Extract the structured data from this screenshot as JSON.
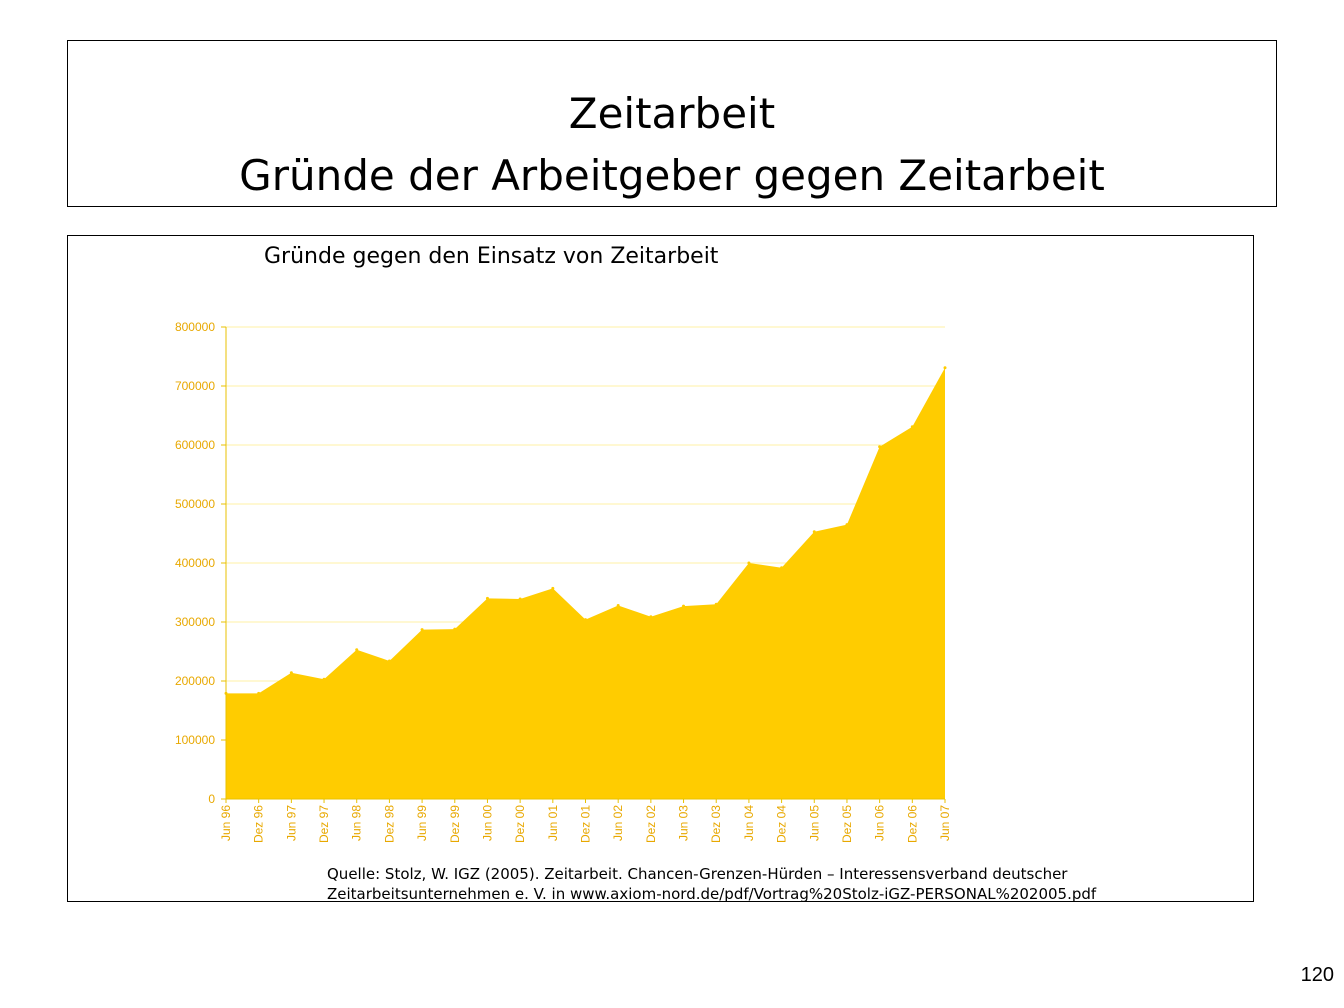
{
  "slide": {
    "title_line1": "Zeitarbeit",
    "title_line2": "Gründe der Arbeitgeber gegen Zeitarbeit",
    "source": "Quelle: Stolz, W. IGZ (2005). Zeitarbeit. Chancen-Grenzen-Hürden – Interessensverband deutscher Zeitarbeitsunternehmen e. V. in www.axiom-nord.de/pdf/Vortrag%20Stolz-iGZ-PERSONAL%202005.pdf",
    "page_number": "120"
  },
  "chart_data": {
    "type": "area",
    "title": "Gründe gegen den Einsatz von Zeitarbeit",
    "xlabel": "",
    "ylabel": "",
    "ylim": [
      0,
      800000
    ],
    "yticks": [
      0,
      100000,
      200000,
      300000,
      400000,
      500000,
      600000,
      700000,
      800000
    ],
    "grid": true,
    "legend": "none",
    "colors": {
      "fill": "#FFCC00",
      "tick_text": "#E8A800",
      "gridline": "#FFF2A6",
      "axis": "#E8C200"
    },
    "categories": [
      "Jun 96",
      "Dez 96",
      "Jun 97",
      "Dez 97",
      "Jun 98",
      "Dez 98",
      "Jun 99",
      "Dez 99",
      "Jun 00",
      "Dez 00",
      "Jun 01",
      "Dez 01",
      "Jun 02",
      "Dez 02",
      "Jun 03",
      "Dez 03",
      "Jun 04",
      "Dez 04",
      "Jun 05",
      "Dez 05",
      "Jun 06",
      "Dez 06",
      "Jun 07"
    ],
    "values": [
      179000,
      179000,
      214000,
      203000,
      253000,
      234000,
      287000,
      288000,
      340000,
      339000,
      357000,
      304000,
      328000,
      309000,
      327000,
      330000,
      400000,
      392000,
      453000,
      465000,
      597000,
      631000,
      731000
    ]
  }
}
